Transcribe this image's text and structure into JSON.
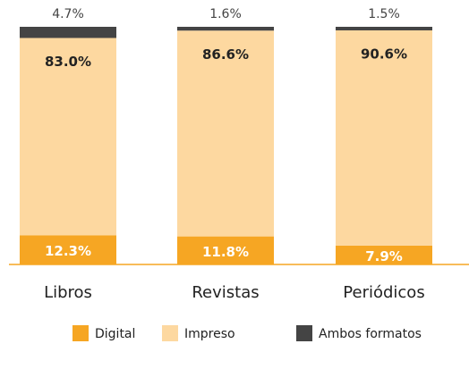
{
  "chart_data": {
    "type": "stacked_bar",
    "categories": [
      "Libros",
      "Revistas",
      "Periódicos"
    ],
    "series": [
      {
        "name": "Digital",
        "color": "#f6a623",
        "values": [
          12.3,
          11.8,
          7.9
        ],
        "value_labels": [
          "12.3%",
          "11.8%",
          "7.9%"
        ]
      },
      {
        "name": "Impreso",
        "color": "#fdd8a0",
        "values": [
          83.0,
          86.6,
          90.6
        ],
        "value_labels": [
          "83.0%",
          "86.6%",
          "90.6%"
        ]
      },
      {
        "name": "Ambos formatos",
        "color": "#444444",
        "values": [
          4.7,
          1.6,
          1.5
        ],
        "value_labels": [
          "4.7%",
          "1.6%",
          "1.5%"
        ]
      }
    ]
  }
}
